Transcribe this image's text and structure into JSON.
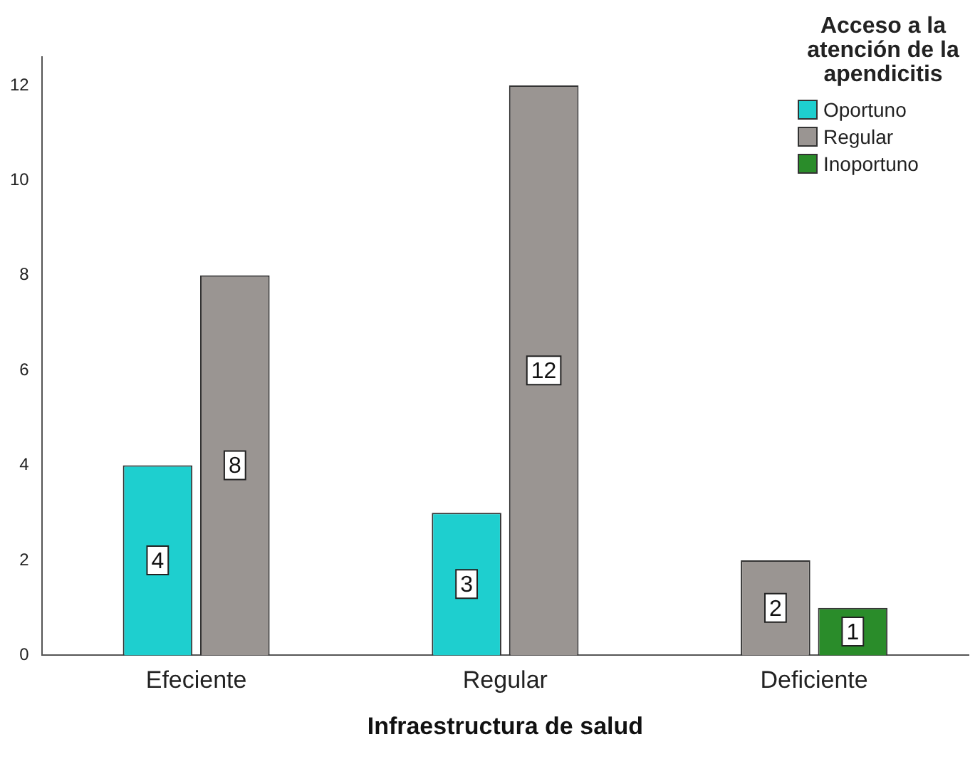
{
  "chart_data": {
    "type": "bar",
    "xlabel": "Infraestructura de salud",
    "legend_title": "Acceso a la atención de la apendicitis",
    "categories": [
      "Efeciente",
      "Regular",
      "Deficiente"
    ],
    "series": [
      {
        "name": "Oportuno",
        "color": "#1ecfcf",
        "values": [
          4,
          3,
          null
        ]
      },
      {
        "name": "Regular",
        "color": "#9a9592",
        "values": [
          8,
          12,
          2
        ]
      },
      {
        "name": "Inoportuno",
        "color": "#2a8c2a",
        "values": [
          null,
          null,
          1
        ]
      }
    ],
    "ylim": [
      0,
      12.6
    ],
    "yticks": [
      0,
      2,
      4,
      6,
      8,
      10,
      12
    ],
    "grid": false,
    "legend": "top right",
    "data_labels": true
  }
}
